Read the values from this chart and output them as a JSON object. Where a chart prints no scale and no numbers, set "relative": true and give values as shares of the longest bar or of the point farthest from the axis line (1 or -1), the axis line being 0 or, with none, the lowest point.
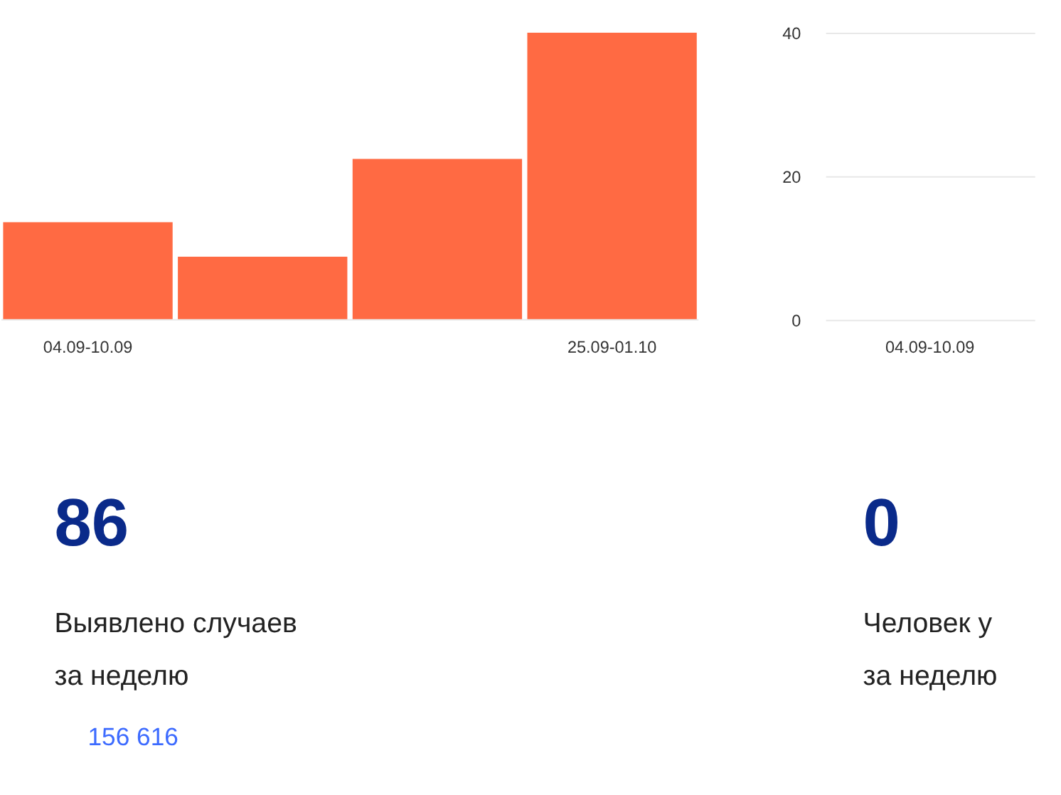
{
  "chart_data": [
    {
      "type": "bar",
      "relative": true,
      "categories": [
        "04.09-10.09",
        null,
        null,
        "25.09-01.10"
      ],
      "values": [
        0.34,
        0.22,
        0.56,
        1
      ],
      "color": "#ff6a43"
    },
    {
      "type": "bar",
      "categories": [
        "04.09-10.09"
      ],
      "values": [
        0
      ],
      "color": "#ff6a43",
      "ylim": [
        0,
        40
      ],
      "yticks": [
        0,
        20,
        40
      ],
      "grid": "y"
    },
    {
      "type": "other",
      "color": "#3d6bff",
      "annotations": [
        "86",
        "Выявлено случаев",
        "за неделю",
        "156 616"
      ]
    },
    {
      "type": "other",
      "color": "#cc0011",
      "annotations": [
        "0",
        "Человек у",
        "за неделю"
      ]
    }
  ]
}
